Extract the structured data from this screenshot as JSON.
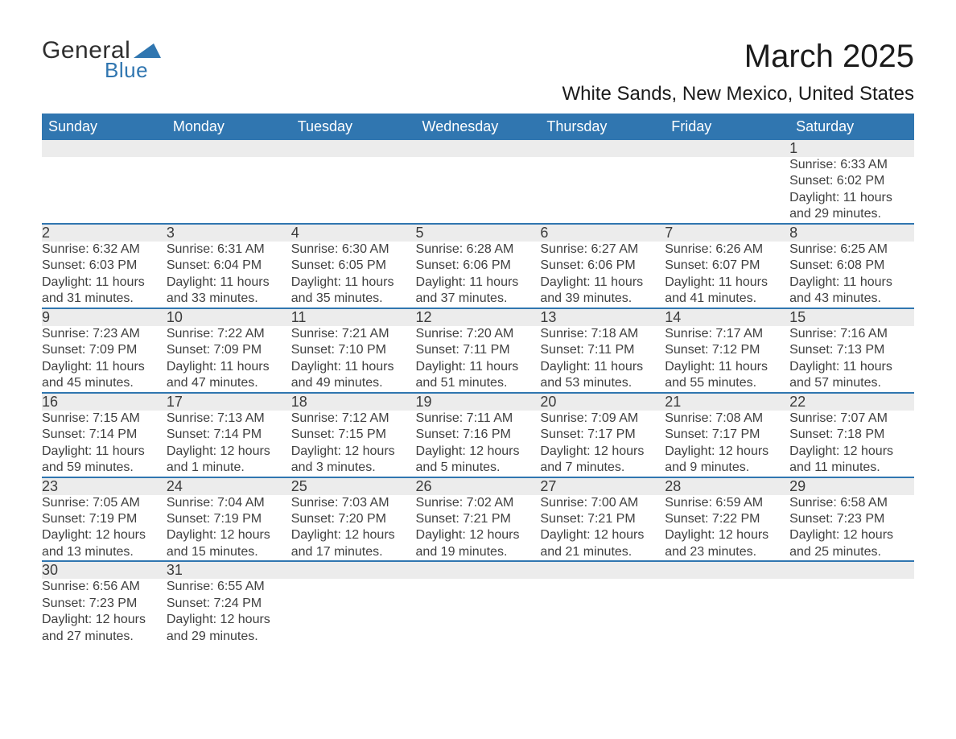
{
  "logo": {
    "general": "General",
    "blue": "Blue",
    "shape_color": "#3076b0"
  },
  "title": "March 2025",
  "location": "White Sands, New Mexico, United States",
  "colors": {
    "header_bg": "#3076b0",
    "header_text": "#ffffff",
    "daynum_bg": "#ececec",
    "row_border": "#3076b0",
    "body_text": "#404040"
  },
  "day_headers": [
    "Sunday",
    "Monday",
    "Tuesday",
    "Wednesday",
    "Thursday",
    "Friday",
    "Saturday"
  ],
  "weeks": [
    [
      null,
      null,
      null,
      null,
      null,
      null,
      {
        "n": "1",
        "sr": "6:33 AM",
        "ss": "6:02 PM",
        "dl": "11 hours and 29 minutes."
      }
    ],
    [
      {
        "n": "2",
        "sr": "6:32 AM",
        "ss": "6:03 PM",
        "dl": "11 hours and 31 minutes."
      },
      {
        "n": "3",
        "sr": "6:31 AM",
        "ss": "6:04 PM",
        "dl": "11 hours and 33 minutes."
      },
      {
        "n": "4",
        "sr": "6:30 AM",
        "ss": "6:05 PM",
        "dl": "11 hours and 35 minutes."
      },
      {
        "n": "5",
        "sr": "6:28 AM",
        "ss": "6:06 PM",
        "dl": "11 hours and 37 minutes."
      },
      {
        "n": "6",
        "sr": "6:27 AM",
        "ss": "6:06 PM",
        "dl": "11 hours and 39 minutes."
      },
      {
        "n": "7",
        "sr": "6:26 AM",
        "ss": "6:07 PM",
        "dl": "11 hours and 41 minutes."
      },
      {
        "n": "8",
        "sr": "6:25 AM",
        "ss": "6:08 PM",
        "dl": "11 hours and 43 minutes."
      }
    ],
    [
      {
        "n": "9",
        "sr": "7:23 AM",
        "ss": "7:09 PM",
        "dl": "11 hours and 45 minutes."
      },
      {
        "n": "10",
        "sr": "7:22 AM",
        "ss": "7:09 PM",
        "dl": "11 hours and 47 minutes."
      },
      {
        "n": "11",
        "sr": "7:21 AM",
        "ss": "7:10 PM",
        "dl": "11 hours and 49 minutes."
      },
      {
        "n": "12",
        "sr": "7:20 AM",
        "ss": "7:11 PM",
        "dl": "11 hours and 51 minutes."
      },
      {
        "n": "13",
        "sr": "7:18 AM",
        "ss": "7:11 PM",
        "dl": "11 hours and 53 minutes."
      },
      {
        "n": "14",
        "sr": "7:17 AM",
        "ss": "7:12 PM",
        "dl": "11 hours and 55 minutes."
      },
      {
        "n": "15",
        "sr": "7:16 AM",
        "ss": "7:13 PM",
        "dl": "11 hours and 57 minutes."
      }
    ],
    [
      {
        "n": "16",
        "sr": "7:15 AM",
        "ss": "7:14 PM",
        "dl": "11 hours and 59 minutes."
      },
      {
        "n": "17",
        "sr": "7:13 AM",
        "ss": "7:14 PM",
        "dl": "12 hours and 1 minute."
      },
      {
        "n": "18",
        "sr": "7:12 AM",
        "ss": "7:15 PM",
        "dl": "12 hours and 3 minutes."
      },
      {
        "n": "19",
        "sr": "7:11 AM",
        "ss": "7:16 PM",
        "dl": "12 hours and 5 minutes."
      },
      {
        "n": "20",
        "sr": "7:09 AM",
        "ss": "7:17 PM",
        "dl": "12 hours and 7 minutes."
      },
      {
        "n": "21",
        "sr": "7:08 AM",
        "ss": "7:17 PM",
        "dl": "12 hours and 9 minutes."
      },
      {
        "n": "22",
        "sr": "7:07 AM",
        "ss": "7:18 PM",
        "dl": "12 hours and 11 minutes."
      }
    ],
    [
      {
        "n": "23",
        "sr": "7:05 AM",
        "ss": "7:19 PM",
        "dl": "12 hours and 13 minutes."
      },
      {
        "n": "24",
        "sr": "7:04 AM",
        "ss": "7:19 PM",
        "dl": "12 hours and 15 minutes."
      },
      {
        "n": "25",
        "sr": "7:03 AM",
        "ss": "7:20 PM",
        "dl": "12 hours and 17 minutes."
      },
      {
        "n": "26",
        "sr": "7:02 AM",
        "ss": "7:21 PM",
        "dl": "12 hours and 19 minutes."
      },
      {
        "n": "27",
        "sr": "7:00 AM",
        "ss": "7:21 PM",
        "dl": "12 hours and 21 minutes."
      },
      {
        "n": "28",
        "sr": "6:59 AM",
        "ss": "7:22 PM",
        "dl": "12 hours and 23 minutes."
      },
      {
        "n": "29",
        "sr": "6:58 AM",
        "ss": "7:23 PM",
        "dl": "12 hours and 25 minutes."
      }
    ],
    [
      {
        "n": "30",
        "sr": "6:56 AM",
        "ss": "7:23 PM",
        "dl": "12 hours and 27 minutes."
      },
      {
        "n": "31",
        "sr": "6:55 AM",
        "ss": "7:24 PM",
        "dl": "12 hours and 29 minutes."
      },
      null,
      null,
      null,
      null,
      null
    ]
  ],
  "labels": {
    "sunrise": "Sunrise: ",
    "sunset": "Sunset: ",
    "daylight": "Daylight: "
  }
}
